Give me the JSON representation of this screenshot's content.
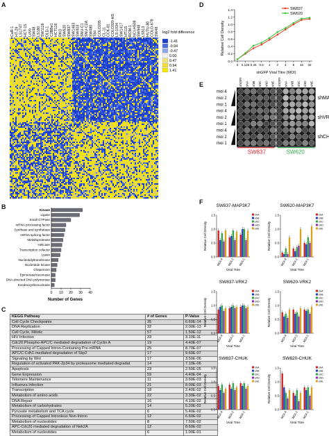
{
  "panels": {
    "a": "A",
    "b": "B",
    "c": "C",
    "d": "D",
    "e": "E",
    "f": "F"
  },
  "heatmap": {
    "cell_lines": [
      "CaR-1",
      "HT-29",
      "LS174T",
      "HCT-15",
      "LoVo",
      "SW48",
      "LS180",
      "SW1116",
      "DLD-1",
      "C2BBe1",
      "HCT116",
      "RKO",
      "SW620",
      "SW837",
      "SW1463",
      "SW403",
      "SNU-C1",
      "SNU-C2A",
      "SW480",
      "T84",
      "COLO205",
      "CL-11",
      "CCK-81",
      "COLO320-HS",
      "LS-1034",
      "SW1417",
      "HT115",
      "RCM-1",
      "NCI-H508",
      "SW948",
      "LS513",
      "HUTU-80",
      "COLO-678",
      "SW48"
    ],
    "legend_title": "log2 fold difference",
    "legend_values": [
      "-1.41",
      "-0.94",
      "-0.47",
      "0.00",
      "0.47",
      "0.94",
      "1.41"
    ],
    "legend_colors": [
      "#1a3cc8",
      "#4a6ee0",
      "#8aa6ee",
      "#f2f2f2",
      "#f0e27a",
      "#f0dc3a",
      "#f5e600"
    ]
  },
  "panel_b": {
    "chart_data": {
      "type": "bar",
      "orientation": "horizontal",
      "categories": [
        "Kinase",
        "Ligase",
        "Small GTPase",
        "mRNA processing factor",
        "Synthase and synthetase",
        "mRNA splicing factor",
        "Metalloprotease",
        "Helicase",
        "Transcription cofactor",
        "Lyase",
        "Nucleotidyltransferase",
        "Nucleotide kinase",
        "Chaperonin",
        "Epimerase/racemase",
        "DNA-directed DNA polymerase",
        "Exodeoxyribonuclease"
      ],
      "values": [
        32,
        29,
        20,
        15,
        14,
        13,
        12,
        11,
        10,
        9,
        7,
        6,
        5,
        4,
        4,
        3
      ],
      "xlabel": "Number of Genes",
      "xlim": [
        0,
        40
      ],
      "xticks": [
        "0",
        "10",
        "20",
        "30",
        "40"
      ]
    }
  },
  "panel_c": {
    "headers": [
      "KEGG Pathway",
      "# of Genes",
      "P-Value"
    ],
    "rows": [
      [
        "Cell Cycle Checkpoints",
        "35",
        "6.60E-14"
      ],
      [
        "DNA Replication",
        "32",
        "2.00E-13"
      ],
      [
        "Cell Cycle, Mitotic",
        "57",
        "1.50E-12"
      ],
      [
        "HIV Infection",
        "33",
        "3.10E-11"
      ],
      [
        "Cdc20:Phospho-APC/C mediated degradation of Cyclin A",
        "19",
        "4.40E-07"
      ],
      [
        "Processing of Capped Intron-Containing Pre-mRNA",
        "25",
        "8.70E-07"
      ],
      [
        "APC/C:Cdh1-mediated degradation of Skp2",
        "17",
        "9.60E-07"
      ],
      [
        "Signaling by Wnt",
        "17",
        "3.50E-06"
      ],
      [
        "Regulation of activated PAK-2p34 by proteasome mediated degradat",
        "14",
        "7.10E-06"
      ],
      [
        "Apoptosis",
        "23",
        "2.50E-05"
      ],
      [
        "Gene Expression",
        "59",
        "4.40E-04"
      ],
      [
        "Telomere Maintenance",
        "11",
        "3.60E-03"
      ],
      [
        "Influenza Infection",
        "21",
        "8.00E-03"
      ],
      [
        "Transcription",
        "18",
        "2.40E-02"
      ],
      [
        "Metabolism of amino acids",
        "22",
        "3.30E-02"
      ],
      [
        "DNA Repair",
        "16",
        "4.10E-02"
      ],
      [
        "Metabolism of carbohydrates",
        "14",
        "5.20E-02"
      ],
      [
        "Pyruvate metabolism and TCA cycle",
        "6",
        "5.40E-02"
      ],
      [
        "Processing of Capped Intronless Non-Intron",
        "12",
        "6.60E-02"
      ],
      [
        "Metabolism of nucleotides",
        "8",
        "7.50E-02"
      ],
      [
        "APC-Cdc20 mediated degradation of Nek2A",
        "12",
        "8.60E-02"
      ],
      [
        "Metabolism of nucleotides",
        "6",
        "1.00E-01"
      ]
    ]
  },
  "panel_d": {
    "chart_data": {
      "type": "line",
      "x": [
        0,
        0.125,
        0.25,
        0.5,
        1,
        2,
        4,
        8,
        16,
        32
      ],
      "xticks": [
        "0",
        "0.125",
        "0.25",
        "0.5",
        "1",
        "2",
        "4",
        "8",
        "16",
        "32"
      ],
      "xscale": "log2",
      "ylim": [
        0,
        1.4
      ],
      "yticks": [
        "0.0",
        "0.2",
        "0.4",
        "0.6",
        "0.8",
        "1.0",
        "1.2",
        "1.4"
      ],
      "xlabel": "shGFP Viral Titre (MOI)",
      "ylabel": "Relative Cell Density",
      "series": [
        {
          "name": "SW837",
          "color": "#e03a1e",
          "values": [
            0.05,
            0.2,
            0.35,
            0.45,
            0.58,
            0.72,
            0.86,
            1.0,
            1.12,
            1.15
          ]
        },
        {
          "name": "SW620",
          "color": "#39c43a",
          "values": [
            0.05,
            0.22,
            0.42,
            0.5,
            0.63,
            0.79,
            0.9,
            1.04,
            1.16,
            1.18
          ]
        }
      ]
    }
  },
  "panel_e": {
    "columns": [
      "shGFP",
      "shA",
      "shB",
      "shC",
      "shD",
      "shE",
      "shGFP",
      "shA",
      "shB",
      "shC",
      "shD",
      "shE"
    ],
    "moi_labels": [
      "moi 4",
      "moi 2",
      "moi 1"
    ],
    "groups": [
      "shMAP3K7",
      "shVRK2",
      "shCHUK"
    ],
    "cell_lines": [
      {
        "name": "SW837",
        "color": "#d8232a"
      },
      {
        "name": "SW620",
        "color": "#2fa84f"
      }
    ]
  },
  "panel_f": {
    "series_names": [
      "shA",
      "shB",
      "shC",
      "shD",
      "shE"
    ],
    "series_colors": [
      "#cc2222",
      "#1f3fbf",
      "#2aa642",
      "#8a2bb5",
      "#d9a21a"
    ],
    "categories": [
      "MOI-4",
      "MOI-2",
      "MOI-1"
    ],
    "xlabel": "Viral Titre",
    "ylabel": "Relative Cell Density",
    "charts": [
      {
        "title": "SW837-MAP3K7",
        "yticks": [
          "0.0",
          "0.5",
          "1.0",
          "1.5"
        ],
        "ylim": [
          0,
          1.5
        ],
        "values": [
          [
            0.95,
            0.6,
            0.85,
            0.55,
            0.95
          ],
          [
            0.7,
            0.75,
            0.95,
            0.6,
            0.9
          ],
          [
            0.8,
            1.0,
            1.0,
            0.6,
            0.95
          ]
        ]
      },
      {
        "title": "SW620-MAP3K7",
        "yticks": [
          "0.0",
          "0.5",
          "1.0",
          "1.5"
        ],
        "ylim": [
          0,
          1.5
        ],
        "values": [
          [
            0.15,
            0.1,
            0.3,
            0.1,
            0.7
          ],
          [
            0.3,
            0.2,
            0.35,
            0.4,
            1.0
          ],
          [
            0.5,
            0.45,
            0.7,
            0.5,
            1.1
          ]
        ]
      },
      {
        "title": "SW837-VRK2",
        "yticks": [
          "0.0",
          "0.5",
          "1.0",
          "1.5"
        ],
        "ylim": [
          0,
          1.5
        ],
        "values": [
          [
            0.85,
            0.95,
            1.0,
            0.8,
            0.9
          ],
          [
            0.9,
            0.95,
            1.0,
            0.9,
            0.95
          ],
          [
            0.95,
            1.0,
            1.0,
            0.9,
            0.95
          ]
        ]
      },
      {
        "title": "SW620-VRK2",
        "yticks": [
          "0.0",
          "0.5",
          "1.0",
          "1.5"
        ],
        "ylim": [
          0,
          1.5
        ],
        "values": [
          [
            0.75,
            0.6,
            0.7,
            0.55,
            0.85
          ],
          [
            0.85,
            0.7,
            0.75,
            0.6,
            0.9
          ],
          [
            0.85,
            0.8,
            0.85,
            0.7,
            0.95
          ]
        ]
      },
      {
        "title": "SW837-CHUK",
        "yticks": [
          "0.0",
          "0.5",
          "1.0",
          "1.5"
        ],
        "ylim": [
          0,
          1.5
        ],
        "values": [
          [
            0.85,
            0.7,
            0.9,
            0.6,
            0.75
          ],
          [
            0.9,
            0.75,
            0.95,
            0.7,
            0.8
          ],
          [
            0.95,
            0.85,
            0.95,
            0.75,
            0.85
          ]
        ]
      },
      {
        "title": "SW620-CHUK",
        "yticks": [
          "0.0",
          "0.5",
          "1.0",
          "1.5"
        ],
        "ylim": [
          0,
          1.5
        ],
        "values": [
          [
            1.3,
            0.8,
            0.6,
            0.4,
            0.7
          ],
          [
            0.6,
            0.5,
            0.7,
            0.3,
            0.6
          ],
          [
            0.8,
            0.7,
            0.8,
            0.5,
            0.8
          ]
        ]
      }
    ]
  }
}
